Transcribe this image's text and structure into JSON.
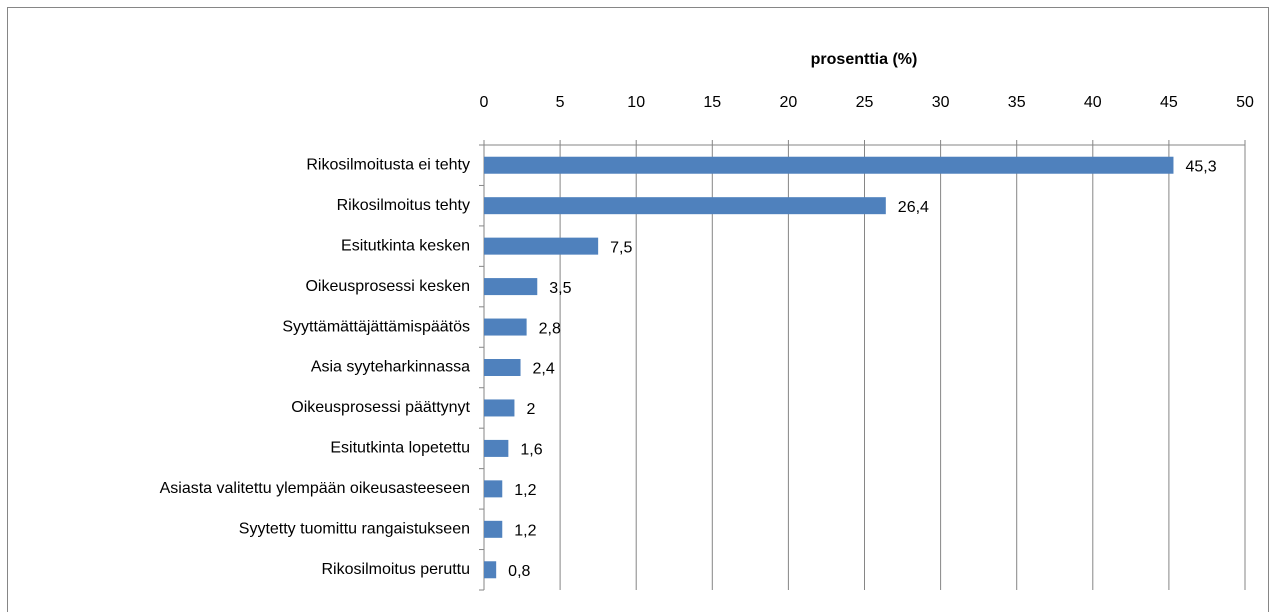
{
  "chart_data": {
    "type": "bar",
    "orientation": "horizontal",
    "x_label": "prosenttia (%)",
    "categories": [
      "Rikosilmoitusta ei tehty",
      "Rikosilmoitus tehty",
      "Esitutkinta kesken",
      "Oikeusprosessi kesken",
      "Syyttämättäjättämispäätös",
      "Asia syyteharkinnassa",
      "Oikeusprosessi päättynyt",
      "Esitutkinta lopetettu",
      "Asiasta valitettu ylempään oikeusasteeseen",
      "Syytetty tuomittu rangaistukseen",
      "Rikosilmoitus peruttu"
    ],
    "values": [
      45.3,
      26.4,
      7.5,
      3.5,
      2.8,
      2.4,
      2,
      1.6,
      1.2,
      1.2,
      0.8
    ],
    "value_labels": [
      "45,3",
      "26,4",
      "7,5",
      "3,5",
      "2,8",
      "2,4",
      "2",
      "1,6",
      "1,2",
      "1,2",
      "0,8"
    ],
    "color": "#4f81bd",
    "xlim": [
      0,
      50
    ],
    "xticks": [
      0,
      5,
      10,
      15,
      20,
      25,
      30,
      35,
      40,
      45,
      50
    ],
    "grid": true
  }
}
